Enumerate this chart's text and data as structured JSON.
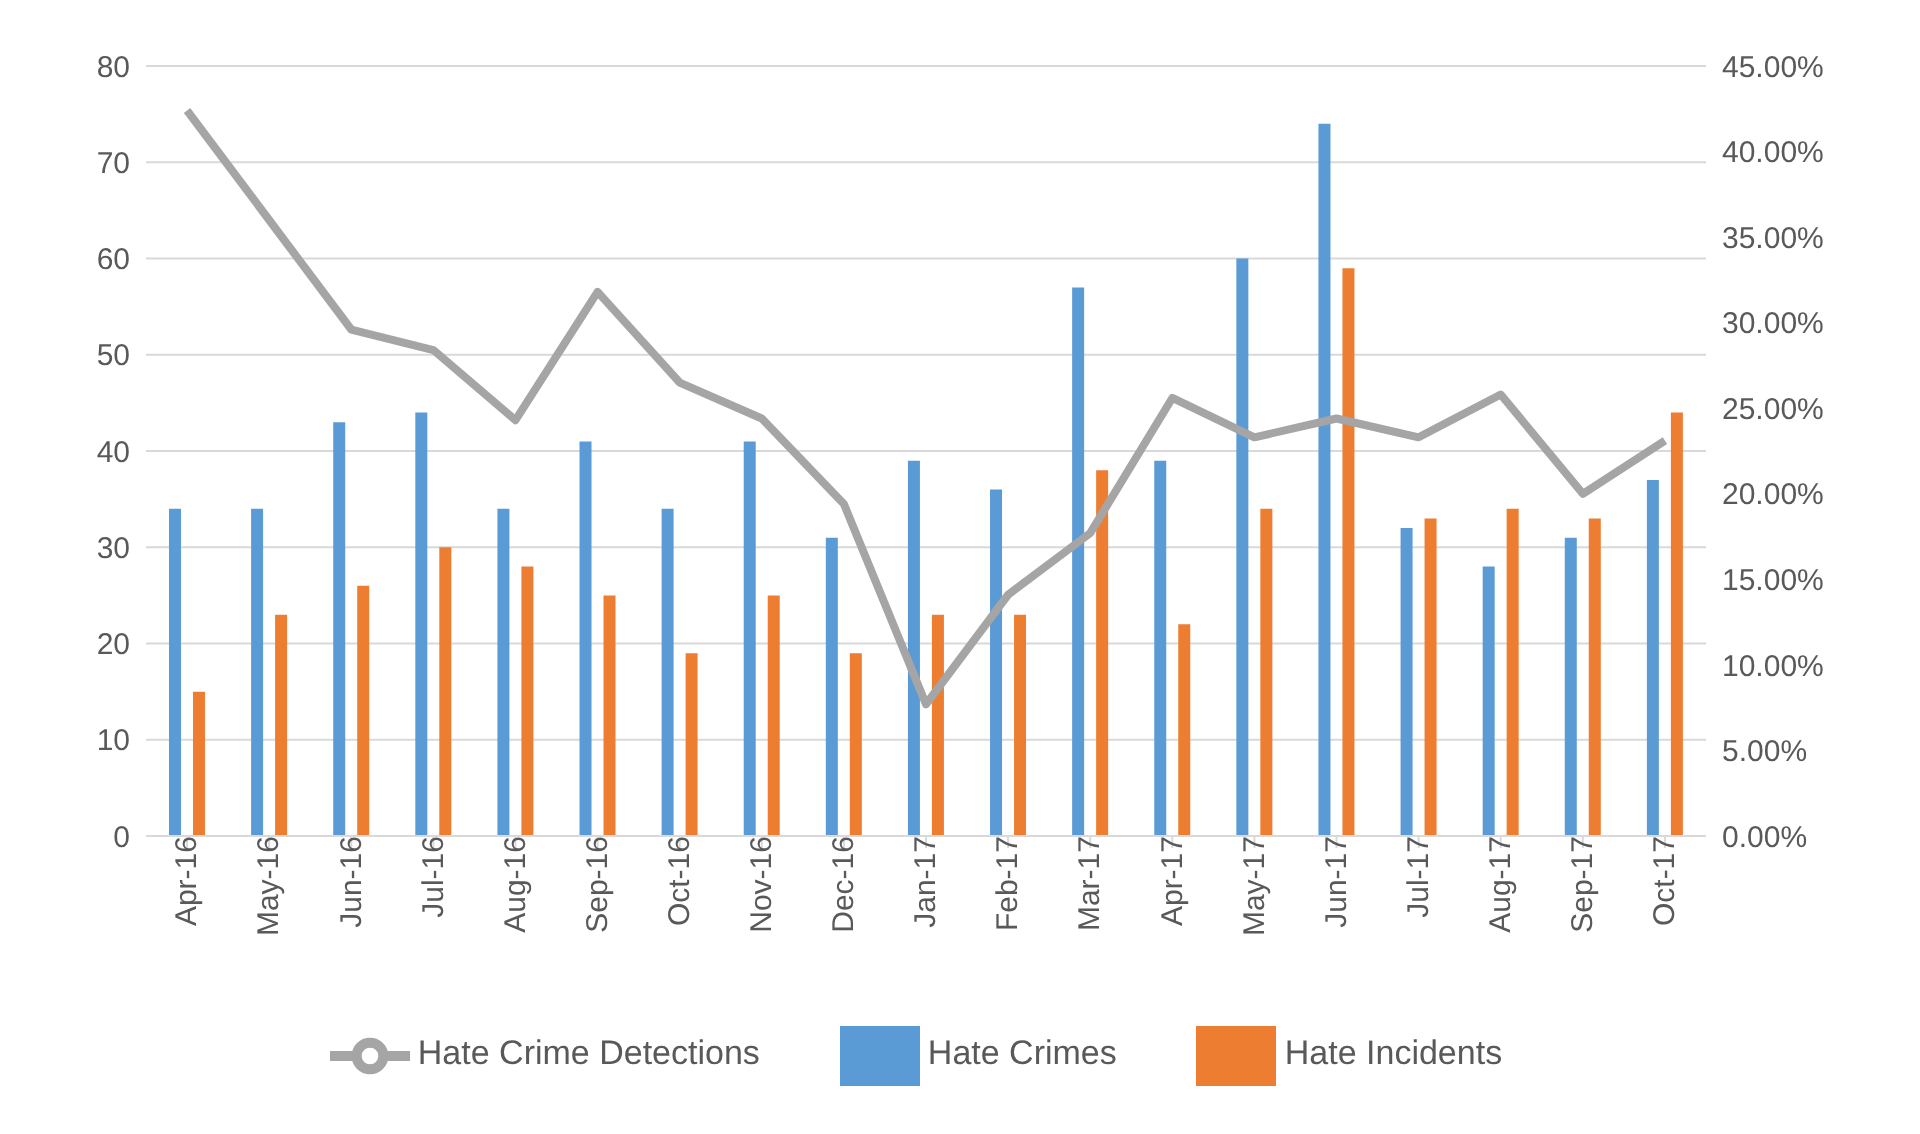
{
  "chart_data": {
    "type": "bar",
    "categories": [
      "Apr-16",
      "May-16",
      "Jun-16",
      "Jul-16",
      "Aug-16",
      "Sep-16",
      "Oct-16",
      "Nov-16",
      "Dec-16",
      "Jan-17",
      "Feb-17",
      "Mar-17",
      "Apr-17",
      "May-17",
      "Jun-17",
      "Jul-17",
      "Aug-17",
      "Sep-17",
      "Oct-17"
    ],
    "series": [
      {
        "name": "Hate Crimes",
        "color": "#5b9bd5",
        "values": [
          34,
          34,
          43,
          44,
          34,
          41,
          34,
          41,
          31,
          39,
          36,
          57,
          39,
          60,
          74,
          32,
          28,
          31,
          37
        ]
      },
      {
        "name": "Hate Incidents",
        "color": "#ed7d31",
        "values": [
          15,
          23,
          26,
          30,
          28,
          25,
          19,
          25,
          19,
          23,
          23,
          38,
          22,
          34,
          59,
          33,
          34,
          33,
          44
        ]
      },
      {
        "name": "Hate Crime Detections",
        "type": "line",
        "axis": "y2",
        "color": "#a5a5a5",
        "values": [
          42.4,
          36,
          29.6,
          28.4,
          24.3,
          31.8,
          26.5,
          24.4,
          19.4,
          7.7,
          14.1,
          17.7,
          25.6,
          23.3,
          24.4,
          23.3,
          25.8,
          20.0,
          23.1
        ]
      }
    ],
    "ylim": [
      0,
      80
    ],
    "yticks": [
      0,
      10,
      20,
      30,
      40,
      50,
      60,
      70,
      80
    ],
    "y2lim": [
      0,
      45
    ],
    "y2ticks": [
      {
        "value": 0,
        "label": "0.00%"
      },
      {
        "value": 5,
        "label": "5.00%"
      },
      {
        "value": 10,
        "label": "10.00%"
      },
      {
        "value": 15,
        "label": "15.00%"
      },
      {
        "value": 20,
        "label": "20.00%"
      },
      {
        "value": 25,
        "label": "25.00%"
      },
      {
        "value": 30,
        "label": "30.00%"
      },
      {
        "value": 35,
        "label": "35.00%"
      },
      {
        "value": 40,
        "label": "40.00%"
      },
      {
        "value": 45,
        "label": "45.00%"
      }
    ],
    "grid": "y",
    "legend": "bottom",
    "marker": "none",
    "line_style": "solid"
  }
}
